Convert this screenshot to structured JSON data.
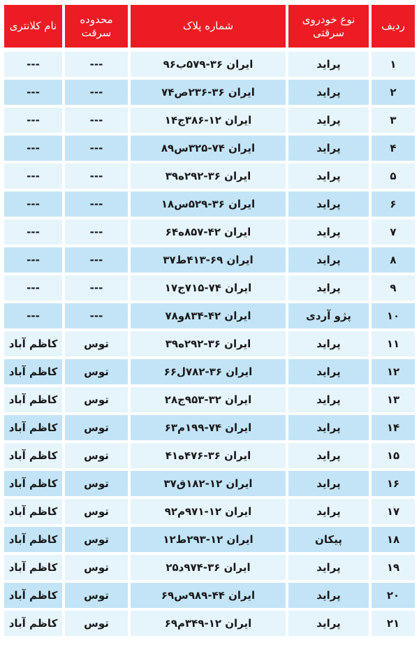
{
  "headers": {
    "row": "ردیف",
    "vehicle": "نوع خودروی سرقتی",
    "plate": "شماره پلاک",
    "area": "محدوده سرقت",
    "station": "نام کلانتری"
  },
  "colors": {
    "header": "#ed1c24",
    "row_light": "#e6f4fc",
    "row_dark": "#c3e4f7"
  },
  "rows": [
    {
      "n": "۱",
      "vehicle": "پراید",
      "plate": "ایران ۳۶-۵۷۹ب۹۶",
      "area": "---",
      "station": "---"
    },
    {
      "n": "۲",
      "vehicle": "پراید",
      "plate": "ایران ۳۶-۲۳۶ص۷۴",
      "area": "---",
      "station": "---"
    },
    {
      "n": "۳",
      "vehicle": "پراید",
      "plate": "ایران ۱۲-۳۸۶ج۱۴",
      "area": "---",
      "station": "---"
    },
    {
      "n": "۴",
      "vehicle": "پراید",
      "plate": "ایران ۷۴-۳۲۵س۸۹",
      "area": "---",
      "station": "---"
    },
    {
      "n": "۵",
      "vehicle": "پراید",
      "plate": "ایران ۳۶-۲۹۲ه۳۹",
      "area": "---",
      "station": "---"
    },
    {
      "n": "۶",
      "vehicle": "پراید",
      "plate": "ایران ۳۶-۵۲۹س۱۸",
      "area": "---",
      "station": "---"
    },
    {
      "n": "۷",
      "vehicle": "پراید",
      "plate": "ایران ۴۲-۸۵۷ه۶۴",
      "area": "---",
      "station": "---"
    },
    {
      "n": "۸",
      "vehicle": "پراید",
      "plate": "ایران ۶۹-۴۱۳ط۳۷",
      "area": "---",
      "station": "---"
    },
    {
      "n": "۹",
      "vehicle": "پراید",
      "plate": "ایران ۷۴-۷۱۵ج۱۷",
      "area": "---",
      "station": "---"
    },
    {
      "n": "۱۰",
      "vehicle": "پژو آردی",
      "plate": "ایران ۴۲-۸۳۴و۷۸",
      "area": "---",
      "station": "---"
    },
    {
      "n": "۱۱",
      "vehicle": "پراید",
      "plate": "ایران ۳۶-۲۹۲ه۳۹",
      "area": "توس",
      "station": "کاظم آباد"
    },
    {
      "n": "۱۲",
      "vehicle": "پراید",
      "plate": "ایران ۳۶-۷۸۲ل۶۶",
      "area": "توس",
      "station": "کاظم آباد"
    },
    {
      "n": "۱۳",
      "vehicle": "پراید",
      "plate": "ایران ۳۲-۹۵۳ج۲۸",
      "area": "توس",
      "station": "کاظم آباد"
    },
    {
      "n": "۱۴",
      "vehicle": "پراید",
      "plate": "ایران ۷۴-۱۹۹م۶۳",
      "area": "توس",
      "station": "کاظم آباد"
    },
    {
      "n": "۱۵",
      "vehicle": "پراید",
      "plate": "ایران ۳۶-۴۷۶ه۴۱",
      "area": "توس",
      "station": "کاظم آباد"
    },
    {
      "n": "۱۶",
      "vehicle": "پراید",
      "plate": "ایران ۱۲-۱۸۲ق۳۷",
      "area": "توس",
      "station": "کاظم آباد"
    },
    {
      "n": "۱۷",
      "vehicle": "پراید",
      "plate": "ایران ۱۲-۹۷۱م۹۲",
      "area": "توس",
      "station": "کاظم آباد"
    },
    {
      "n": "۱۸",
      "vehicle": "پیکان",
      "plate": "ایران ۱۲-۲۹۳ط۱۲",
      "area": "توس",
      "station": "کاظم آباد"
    },
    {
      "n": "۱۹",
      "vehicle": "پراید",
      "plate": "ایران ۳۶-۹۷۴د۲۵",
      "area": "توس",
      "station": "کاظم آباد"
    },
    {
      "n": "۲۰",
      "vehicle": "پراید",
      "plate": "ایران ۴۴-۹۸۹س۶۹",
      "area": "توس",
      "station": "کاظم آباد"
    },
    {
      "n": "۲۱",
      "vehicle": "پراید",
      "plate": "ایران ۱۲-۳۴۹م۶۹",
      "area": "توس",
      "station": "کاظم آباد"
    }
  ]
}
